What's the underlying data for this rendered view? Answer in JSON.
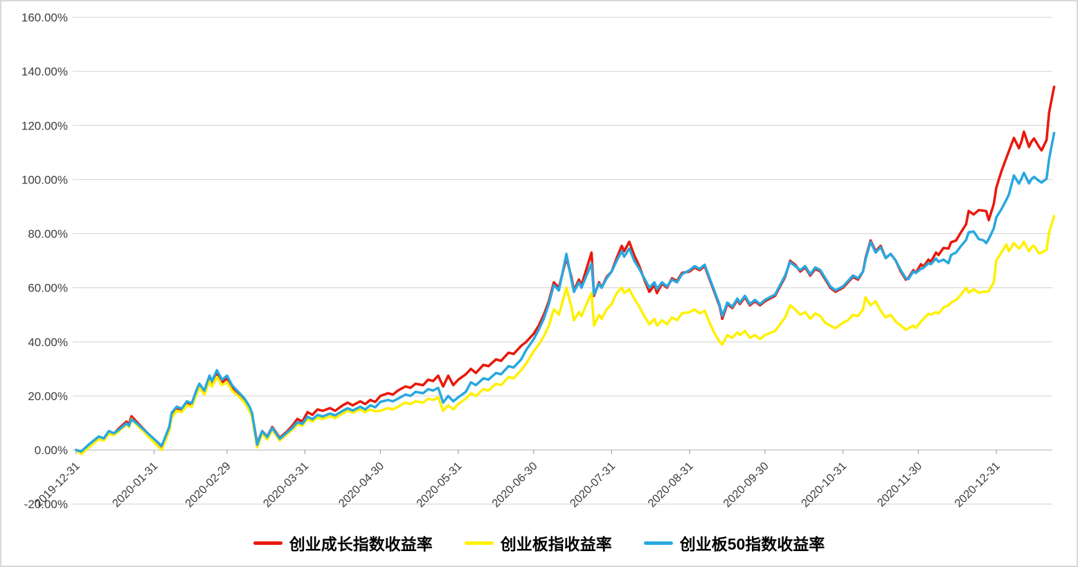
{
  "chart_data": {
    "type": "line",
    "grid": "horizontal-only",
    "legend_position": "bottom-center",
    "background": "#ffffff",
    "gridline_color": "#d9d9d9",
    "axis_line_color": "#bfbfbf",
    "tick_mark_color": "#a6a6a6",
    "label_color": "#3d3d3d",
    "y_axis": {
      "unit": "percent",
      "range": [
        -20,
        160
      ],
      "tick_values": [
        160,
        140,
        120,
        100,
        80,
        60,
        40,
        20,
        0,
        -20
      ],
      "tick_labels": [
        "160.00%",
        "140.00%",
        "120.00%",
        "100.00%",
        "80.00%",
        "60.00%",
        "40.00%",
        "20.00%",
        "0.00%",
        "-20.00%"
      ]
    },
    "x_axis": {
      "type": "date",
      "domain_days": [
        0,
        389
      ],
      "tick_days": [
        0,
        31,
        60,
        91,
        121,
        152,
        182,
        213,
        244,
        274,
        305,
        335,
        366
      ],
      "tick_labels": [
        "2019-12-31",
        "2020-01-31",
        "2020-02-29",
        "2020-03-31",
        "2020-04-30",
        "2020-05-31",
        "2020-06-30",
        "2020-07-31",
        "2020-08-31",
        "2020-09-30",
        "2020-10-31",
        "2020-11-30",
        "2020-12-31"
      ],
      "label_rotation_deg": -45
    },
    "x_days": [
      0,
      2,
      5,
      7,
      9,
      11,
      13,
      15,
      17,
      20,
      21,
      22,
      24,
      34,
      37,
      38,
      40,
      42,
      44,
      46,
      48,
      49,
      51,
      53,
      54,
      56,
      58,
      60,
      62,
      65,
      67,
      69,
      70,
      72,
      74,
      76,
      78,
      81,
      84,
      86,
      88,
      90,
      92,
      94,
      96,
      98,
      101,
      103,
      106,
      108,
      110,
      113,
      115,
      117,
      119,
      121,
      124,
      126,
      128,
      131,
      133,
      135,
      138,
      140,
      142,
      144,
      146,
      148,
      150,
      152,
      155,
      157,
      159,
      162,
      164,
      167,
      169,
      172,
      174,
      177,
      179,
      182,
      184,
      186,
      188,
      190,
      192,
      195,
      197,
      198,
      200,
      201,
      203,
      205,
      206,
      208,
      209,
      211,
      213,
      215,
      217,
      218,
      220,
      222,
      224,
      226,
      228,
      230,
      231,
      233,
      235,
      237,
      239,
      241,
      244,
      246,
      248,
      250,
      252,
      254,
      256,
      257,
      259,
      261,
      263,
      264,
      266,
      268,
      270,
      272,
      274,
      278,
      282,
      284,
      286,
      288,
      290,
      292,
      294,
      296,
      298,
      300,
      302,
      305,
      307,
      309,
      311,
      313,
      314,
      316,
      318,
      320,
      322,
      324,
      326,
      328,
      330,
      331,
      333,
      334,
      336,
      337,
      339,
      340,
      342,
      343,
      345,
      347,
      348,
      350,
      352,
      354,
      355,
      357,
      359,
      361,
      362,
      363,
      365,
      366,
      367,
      368,
      370,
      371,
      373,
      375,
      376,
      377,
      379,
      380,
      381,
      383,
      384,
      386,
      387,
      389
    ],
    "series": [
      {
        "key": "growth-index",
        "name": "创业成长指数收益率",
        "color": "#e8190c",
        "values": [
          0,
          -1,
          1.5,
          3,
          4.5,
          4,
          6.5,
          6,
          8,
          10.5,
          9.5,
          12.5,
          10.5,
          0.8,
          8,
          13,
          15.5,
          15,
          17.5,
          17,
          21.5,
          23.5,
          21,
          26,
          24,
          28,
          25,
          26.5,
          23,
          20.5,
          18.5,
          15.5,
          13,
          2.5,
          7,
          5,
          8.5,
          4.5,
          7,
          9,
          11.5,
          10.5,
          14,
          13,
          15,
          14.5,
          15.5,
          14.5,
          16.5,
          17.5,
          16.5,
          18,
          17,
          18.5,
          17.8,
          20,
          21,
          20.5,
          22,
          23.5,
          23,
          24.5,
          24,
          26,
          25.5,
          27.5,
          23.5,
          27.5,
          24,
          26,
          28,
          30,
          28.5,
          31.5,
          31,
          33.5,
          33,
          36,
          35.5,
          38.5,
          40,
          43,
          46,
          50,
          55,
          62,
          60,
          71,
          64,
          59,
          63,
          61,
          67,
          73,
          57,
          62,
          60,
          64,
          66,
          71,
          75.5,
          73.5,
          77,
          72,
          68,
          63,
          58.5,
          61,
          58,
          61.5,
          60,
          63.5,
          62.5,
          65.5,
          66,
          67.5,
          66.5,
          68,
          63,
          58,
          53,
          48.5,
          54,
          52.5,
          55.5,
          54,
          56.5,
          53.5,
          55,
          53.5,
          55,
          57,
          64,
          70,
          68.5,
          66,
          67.5,
          64.5,
          67,
          66,
          63,
          60,
          58.5,
          60,
          62,
          64,
          63,
          66,
          71,
          77.5,
          73.5,
          75.5,
          71,
          72.5,
          70,
          66,
          63,
          63.6,
          66.5,
          65.5,
          68.7,
          67.8,
          70.4,
          69.6,
          73,
          72.1,
          74.7,
          74.5,
          76.8,
          77.5,
          80.6,
          83.5,
          88.4,
          87.1,
          88.7,
          88.5,
          88.3,
          85,
          91,
          97,
          100,
          103,
          108,
          110.5,
          115.4,
          111.6,
          114,
          117.7,
          112.1,
          114,
          115.2,
          112.1,
          110.8,
          114.6,
          124.8,
          134.3
        ]
      },
      {
        "key": "chinext-index",
        "name": "创业板指收益率",
        "color": "#fff000",
        "values": [
          0,
          -1.5,
          1,
          2.5,
          4,
          3.5,
          6,
          5.5,
          7,
          9.5,
          8.5,
          11.5,
          9.5,
          0,
          7,
          12,
          14.5,
          14,
          16.5,
          16,
          21,
          23,
          20.5,
          25.5,
          23.5,
          27,
          24,
          25,
          22,
          19.5,
          17.5,
          14.5,
          12,
          1,
          6,
          4,
          7.5,
          3.5,
          6,
          7.5,
          9.5,
          9,
          11.5,
          10.5,
          12,
          11.5,
          12.5,
          11.8,
          13.5,
          14.5,
          13.8,
          15,
          14,
          15,
          14.3,
          14.5,
          15.5,
          15,
          16,
          17.5,
          17,
          18,
          17.5,
          19,
          18.5,
          19.5,
          14.5,
          16.5,
          15,
          17,
          19,
          21,
          20,
          22.5,
          22,
          24.5,
          24,
          27,
          26.5,
          29.5,
          32,
          36.5,
          39,
          42,
          46,
          52,
          50,
          60,
          53,
          48,
          51,
          49.5,
          54,
          58,
          46,
          50,
          48.5,
          52,
          54,
          58,
          60,
          58,
          59.5,
          56,
          53,
          49.5,
          46.5,
          48.5,
          46,
          48,
          46.5,
          49,
          48,
          50.5,
          51,
          52,
          50.5,
          51.5,
          47,
          43,
          40,
          39,
          42.5,
          41.5,
          43.5,
          42.5,
          44,
          41.5,
          42.5,
          41,
          42.5,
          44,
          49,
          53.5,
          52,
          50,
          51,
          48.5,
          50.5,
          49.5,
          47,
          46,
          45,
          47,
          48,
          50,
          49.5,
          52,
          56.5,
          53.5,
          55,
          51.5,
          49,
          50,
          47.5,
          46,
          44.5,
          45,
          46,
          45.1,
          47.5,
          48.4,
          50.4,
          50,
          51,
          50.4,
          52.7,
          53.5,
          54.5,
          55.5,
          57.5,
          60,
          58.2,
          59.4,
          58.2,
          58.6,
          58.5,
          58.8,
          62,
          70,
          71.5,
          73,
          76,
          73.5,
          76.5,
          74.5,
          75.5,
          77,
          73.5,
          75,
          75.5,
          72.7,
          73,
          74,
          80.5,
          86.5
        ]
      },
      {
        "key": "chinext50-index",
        "name": "创业板50指数收益率",
        "color": "#29a8df",
        "values": [
          0,
          -0.5,
          2,
          3.5,
          5,
          4.3,
          7,
          6.2,
          7.5,
          9.8,
          9,
          11.3,
          10,
          1.5,
          8.5,
          13.8,
          16,
          15.3,
          18,
          17.3,
          22.5,
          24.5,
          22,
          27.5,
          25.5,
          29.5,
          26,
          27.5,
          24,
          21,
          19,
          16,
          13.5,
          2,
          7,
          4.8,
          8.2,
          4.2,
          6.6,
          8.2,
          10.3,
          9.7,
          12.3,
          11.4,
          13,
          12.4,
          13.5,
          12.8,
          14.5,
          15.4,
          14.6,
          16,
          15,
          16.5,
          15.8,
          17.8,
          18.5,
          18,
          19,
          20.5,
          20,
          21.5,
          21,
          22.5,
          22,
          23,
          17.5,
          20,
          18,
          19.5,
          21.5,
          25,
          24,
          26.5,
          26,
          28.5,
          28,
          31,
          30.5,
          33.5,
          37,
          41,
          44.5,
          48.5,
          54,
          61,
          59,
          72.5,
          63,
          58.5,
          62,
          60,
          64.5,
          69,
          57.5,
          61.5,
          60,
          63.5,
          66,
          70,
          73.5,
          71.5,
          74.5,
          70,
          67,
          63.5,
          60,
          62,
          59.5,
          62,
          60.5,
          63,
          62,
          65,
          66.5,
          68,
          67,
          68.5,
          63.5,
          58.5,
          53.5,
          49.5,
          54.5,
          53,
          56,
          54.5,
          57,
          54,
          55.5,
          54,
          55.5,
          57.5,
          64.5,
          69.5,
          68,
          66.5,
          68,
          65,
          67.5,
          66.5,
          63.5,
          60.5,
          59,
          60.5,
          62.5,
          64.5,
          63.5,
          66,
          70.5,
          77,
          73,
          75,
          71,
          72.5,
          70,
          66.5,
          63.5,
          63.2,
          66,
          65.5,
          67,
          67.3,
          69.1,
          68.7,
          70.8,
          69.6,
          70.4,
          69.1,
          72.1,
          73,
          75.5,
          77.7,
          80.5,
          80.8,
          78,
          77.5,
          76.5,
          78,
          82,
          86,
          87.5,
          89,
          92.5,
          94.5,
          101.5,
          98.5,
          100.3,
          102.5,
          98.6,
          100.2,
          101,
          99.5,
          98.9,
          100.3,
          107.7,
          117.2
        ]
      }
    ]
  },
  "legend": {
    "items": [
      {
        "label": "创业成长指数收益率"
      },
      {
        "label": "创业板指收益率"
      },
      {
        "label": "创业板50指数收益率"
      }
    ]
  }
}
